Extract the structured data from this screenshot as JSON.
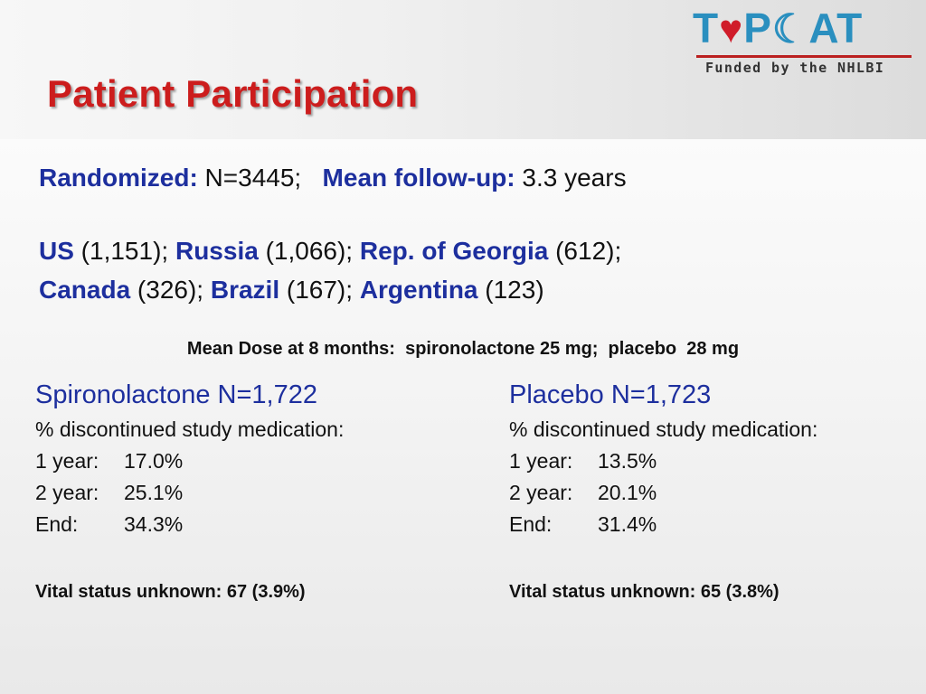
{
  "slide": {
    "title": "Patient Participation"
  },
  "logo": {
    "t": "T",
    "p": "P",
    "at": "AT",
    "funded": "Funded by the NHLBI"
  },
  "summary": {
    "randomized_label": "Randomized:",
    "randomized_value": " N=3445;   ",
    "followup_label": "Mean follow-up:",
    "followup_value": " 3.3 years"
  },
  "countries": [
    {
      "name": "US",
      "value": " (1,151); "
    },
    {
      "name": "Russia",
      "value": " (1,066); "
    },
    {
      "name": "Rep. of Georgia",
      "value": " (612);"
    },
    {
      "name": "Canada",
      "value": " (326); "
    },
    {
      "name": "Brazil",
      "value": " (167); "
    },
    {
      "name": "Argentina",
      "value": " (123)"
    }
  ],
  "mean_dose": "Mean Dose at 8 months:  spironolactone 25 mg;  placebo  28 mg",
  "groups": [
    {
      "heading": "Spironolactone N=1,722",
      "discontinued_label": "% discontinued study medication:",
      "rows": [
        {
          "label": "1 year:",
          "value": "17.0%"
        },
        {
          "label": "2 year:",
          "value": "25.1%"
        },
        {
          "label": "End:",
          "value": "34.3%"
        }
      ],
      "vital": "Vital status unknown: 67 (3.9%)"
    },
    {
      "heading": "Placebo N=1,723",
      "discontinued_label": "% discontinued study medication:",
      "rows": [
        {
          "label": "1 year:",
          "value": "13.5%"
        },
        {
          "label": "2 year:",
          "value": "20.1%"
        },
        {
          "label": "End:",
          "value": "31.4%"
        }
      ],
      "vital": "Vital status unknown: 65 (3.8%)"
    }
  ],
  "colors": {
    "title_red": "#cc1d1d",
    "label_blue": "#1d2f9e",
    "logo_blue": "#2a8fbf",
    "logo_heart": "#d01c2a"
  }
}
